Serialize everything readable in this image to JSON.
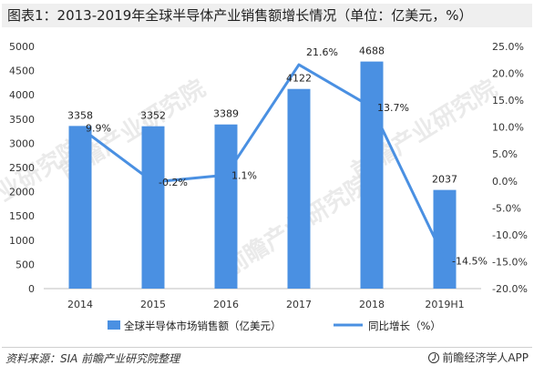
{
  "title": "图表1：2013-2019年全球半导体产业销售额增长情况（单位：亿美元，%）",
  "source": "资料来源：SIA 前瞻产业研究院整理",
  "brand": "前瞻经济学人APP",
  "watermark": "前瞻产业研究院",
  "colors": {
    "bar": "#4a90e2",
    "line": "#4a90e2",
    "axis_text": "#333333",
    "label": "#222222"
  },
  "chart_data": {
    "type": "bar",
    "categories": [
      "2014",
      "2015",
      "2016",
      "2017",
      "2018",
      "2019H1"
    ],
    "series": [
      {
        "name": "全球半导体市场销售额（亿美元）",
        "type": "bar",
        "axis": "left",
        "values": [
          3358,
          3352,
          3389,
          4122,
          4688,
          2037
        ],
        "labels": [
          "3358",
          "3352",
          "3389",
          "4122",
          "4688",
          "2037"
        ]
      },
      {
        "name": "同比增长（%）",
        "type": "line",
        "axis": "right",
        "values": [
          9.9,
          -0.2,
          1.1,
          21.6,
          13.7,
          -14.5
        ],
        "labels": [
          "9.9%",
          "-0.2%",
          "1.1%",
          "21.6%",
          "13.7%",
          "-14.5%"
        ]
      }
    ],
    "y_left": {
      "min": 0,
      "max": 5000,
      "step": 500,
      "ticks": [
        "0",
        "500",
        "1000",
        "1500",
        "2000",
        "2500",
        "3000",
        "3500",
        "4000",
        "4500",
        "5000"
      ]
    },
    "y_right": {
      "min": -20,
      "max": 25,
      "step": 5,
      "ticks": [
        "-20.0%",
        "-15.0%",
        "-10.0%",
        "-5.0%",
        "0.0%",
        "5.0%",
        "10.0%",
        "15.0%",
        "20.0%",
        "25.0%"
      ]
    },
    "legend": "bottom",
    "grid": false
  }
}
